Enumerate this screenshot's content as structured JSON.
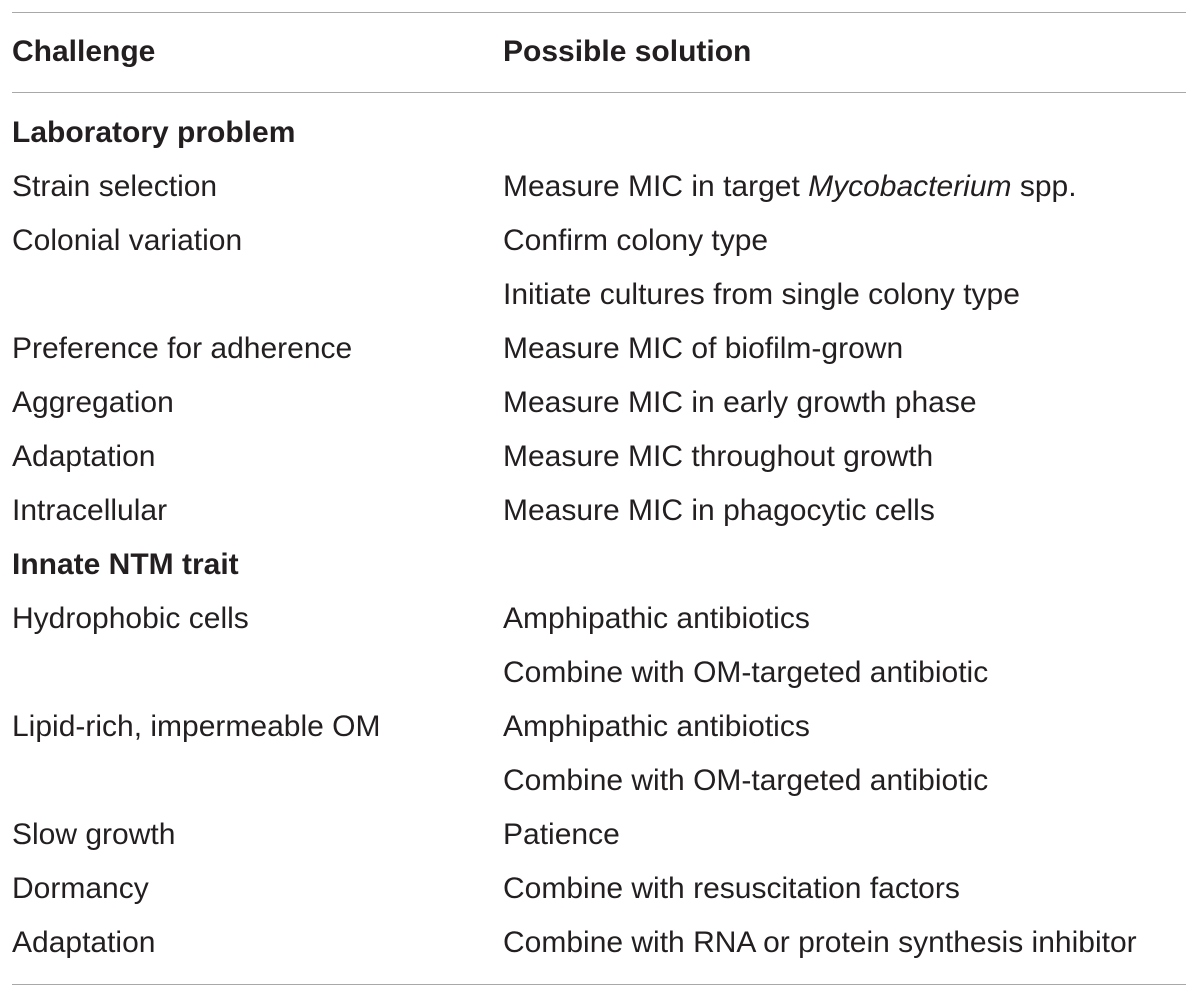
{
  "table": {
    "headers": {
      "challenge": "Challenge",
      "solution": "Possible solution"
    },
    "rows": [
      {
        "type": "section",
        "challenge": "Laboratory problem",
        "solution": ""
      },
      {
        "type": "data",
        "challenge": "Strain selection",
        "solution_before": "Measure MIC in target ",
        "solution_italic": "Mycobacterium",
        "solution_after": " spp."
      },
      {
        "type": "data",
        "challenge": "Colonial variation",
        "solution": "Confirm colony type"
      },
      {
        "type": "data",
        "challenge": "",
        "solution": "Initiate cultures from single colony type"
      },
      {
        "type": "data",
        "challenge": "Preference for adherence",
        "solution": "Measure MIC of biofilm-grown"
      },
      {
        "type": "data",
        "challenge": "Aggregation",
        "solution": "Measure MIC in early growth phase"
      },
      {
        "type": "data",
        "challenge": "Adaptation",
        "solution": "Measure MIC throughout growth"
      },
      {
        "type": "data",
        "challenge": "Intracellular",
        "solution": "Measure MIC in phagocytic cells"
      },
      {
        "type": "section",
        "challenge": "Innate NTM trait",
        "solution": ""
      },
      {
        "type": "data",
        "challenge": "Hydrophobic cells",
        "solution": "Amphipathic antibiotics"
      },
      {
        "type": "data",
        "challenge": "",
        "solution": "Combine with OM-targeted antibiotic"
      },
      {
        "type": "data",
        "challenge": "Lipid-rich, impermeable OM",
        "solution": "Amphipathic antibiotics"
      },
      {
        "type": "data",
        "challenge": "",
        "solution": "Combine with OM-targeted antibiotic"
      },
      {
        "type": "data",
        "challenge": "Slow growth",
        "solution": "Patience"
      },
      {
        "type": "data",
        "challenge": "Dormancy",
        "solution": "Combine with resuscitation factors"
      },
      {
        "type": "data",
        "challenge": "Adaptation",
        "solution": "Combine with RNA or protein synthesis inhibitor"
      }
    ]
  },
  "colors": {
    "text": "#231f20",
    "rule": "#a8a8a8",
    "background": "#ffffff"
  }
}
